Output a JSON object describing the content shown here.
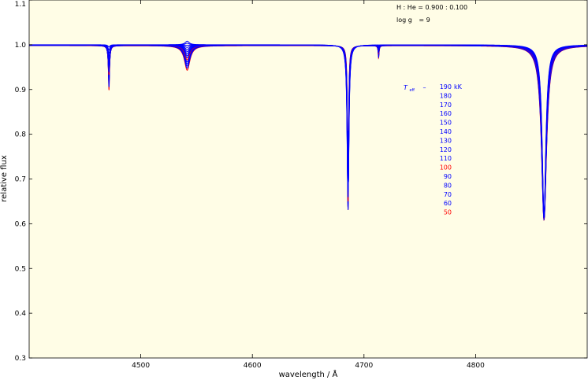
{
  "chart_data": {
    "type": "line",
    "xlabel": "wavelength / Å",
    "ylabel": "relative flux",
    "xlim": [
      4400,
      4900
    ],
    "ylim": [
      0.3,
      1.1
    ],
    "x_ticks": [
      4500,
      4600,
      4700,
      4800
    ],
    "y_ticks": [
      0.3,
      0.4,
      0.5,
      0.6,
      0.7,
      0.8,
      0.9,
      1.0,
      1.1
    ],
    "y_tick_labels": [
      "0.3",
      "0.4",
      "0.5",
      "0.6",
      "0.7",
      "0.8",
      "0.9",
      "1.0",
      "1.1"
    ],
    "grid": false,
    "background_color": "#fffde6",
    "annotations": {
      "composition": "H : He = 0.900 : 0.100",
      "gravity_symbol": "log g",
      "gravity_value": "= 9"
    },
    "legend": {
      "placement": "right",
      "title_symbol": "T",
      "title_subscript": "eff",
      "title_dash": "–",
      "unit": "kK",
      "entries": [
        "190",
        "180",
        "170",
        "160",
        "150",
        "140",
        "130",
        "120",
        "110",
        "100",
        "90",
        "80",
        "70",
        "60",
        "50"
      ],
      "entry_colors": [
        "#0000ff",
        "#0000ff",
        "#0000ff",
        "#0000ff",
        "#0000ff",
        "#0000ff",
        "#0000ff",
        "#0000ff",
        "#0000ff",
        "#ff0000",
        "#0000ff",
        "#0000ff",
        "#0000ff",
        "#0000ff",
        "#ff0000"
      ]
    },
    "temperatures_kK": [
      190,
      180,
      170,
      160,
      150,
      140,
      130,
      120,
      110,
      100,
      90,
      80,
      70,
      60,
      50
    ],
    "series_colors": [
      "#0000ff",
      "#0000ff",
      "#0000ff",
      "#0000ff",
      "#0000ff",
      "#0000ff",
      "#0000ff",
      "#0000ff",
      "#0000ff",
      "#ff0000",
      "#0000ff",
      "#0000ff",
      "#0000ff",
      "#0000ff",
      "#ff0000"
    ],
    "lines": [
      {
        "center": 4471.5,
        "depth_hot": 0.005,
        "depth_cool": 0.1,
        "width_hot": 1.0,
        "width_cool": 0.6
      },
      {
        "center": 4541.6,
        "depth_hot": -0.008,
        "depth_cool": 0.055,
        "width_hot": 2.2,
        "width_cool": 3.0
      },
      {
        "center": 4685.7,
        "depth_hot": 0.385,
        "depth_cool": 0.37,
        "width_hot": 0.9,
        "width_cool": 0.55,
        "emission_hot": 0.2
      },
      {
        "center": 4713.1,
        "depth_hot": 0.0,
        "depth_cool": 0.028,
        "width_hot": 0.5,
        "width_cool": 0.5
      },
      {
        "center": 4861.3,
        "depth_hot": 0.38,
        "depth_cool": 0.39,
        "width_hot": 2.0,
        "width_cool": 2.8
      }
    ]
  }
}
